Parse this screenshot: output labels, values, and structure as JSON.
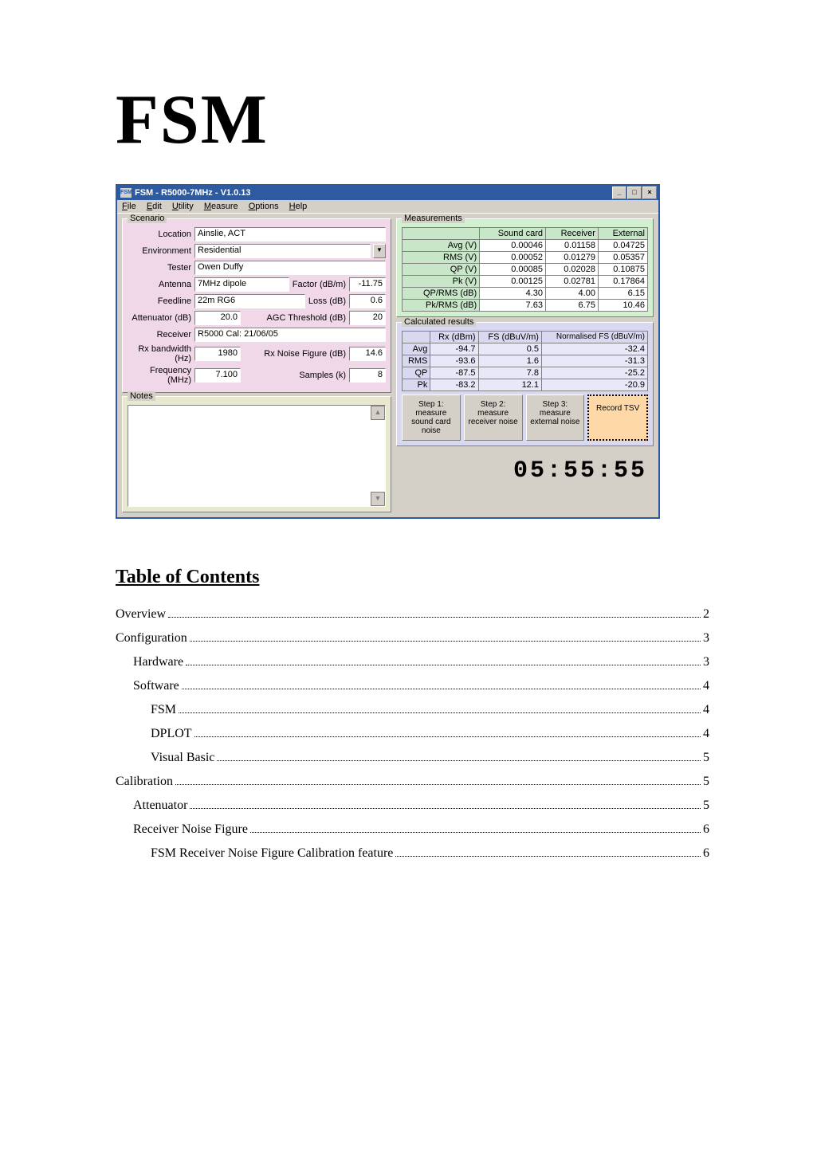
{
  "doc_title": "FSM",
  "app": {
    "titlebar_text": "FSM - R5000-7MHz - V1.0.13",
    "titlebar_icon_text": "FSM",
    "window_buttons": {
      "min": "_",
      "max": "□",
      "close": "×"
    },
    "menus": [
      "File",
      "Edit",
      "Utility",
      "Measure",
      "Options",
      "Help"
    ],
    "groups": {
      "scenario_title": "Scenario",
      "notes_title": "Notes",
      "measurements_title": "Measurements",
      "calculated_title": "Calculated results"
    },
    "scenario": {
      "location_label": "Location",
      "location_value": "Ainslie, ACT",
      "environment_label": "Environment",
      "environment_value": "Residential",
      "tester_label": "Tester",
      "tester_value": "Owen Duffy",
      "antenna_label": "Antenna",
      "antenna_value": "7MHz dipole",
      "factor_label": "Factor (dB/m)",
      "factor_value": "-11.75",
      "feedline_label": "Feedline",
      "feedline_value": "22m RG6",
      "loss_label": "Loss (dB)",
      "loss_value": "0.6",
      "attenuator_label": "Attenuator (dB)",
      "attenuator_value": "20.0",
      "agc_label": "AGC Threshold (dB)",
      "agc_value": "20",
      "receiver_label": "Receiver",
      "receiver_value": "R5000 Cal: 21/06/05",
      "rxbw_label": "Rx bandwidth (Hz)",
      "rxbw_value": "1980",
      "rxnf_label": "Rx Noise Figure (dB)",
      "rxnf_value": "14.6",
      "freq_label": "Frequency (MHz)",
      "freq_value": "7.100",
      "samples_label": "Samples (k)",
      "samples_value": "8"
    },
    "measurements": {
      "headers": [
        "",
        "Sound card",
        "Receiver",
        "External"
      ],
      "rows": [
        {
          "label": "Avg (V)",
          "vals": [
            "0.00046",
            "0.01158",
            "0.04725"
          ]
        },
        {
          "label": "RMS (V)",
          "vals": [
            "0.00052",
            "0.01279",
            "0.05357"
          ]
        },
        {
          "label": "QP (V)",
          "vals": [
            "0.00085",
            "0.02028",
            "0.10875"
          ]
        },
        {
          "label": "Pk (V)",
          "vals": [
            "0.00125",
            "0.02781",
            "0.17864"
          ]
        },
        {
          "label": "QP/RMS (dB)",
          "vals": [
            "4.30",
            "4.00",
            "6.15"
          ]
        },
        {
          "label": "Pk/RMS (dB)",
          "vals": [
            "7.63",
            "6.75",
            "10.46"
          ]
        }
      ]
    },
    "calculated": {
      "headers": [
        "",
        "Rx (dBm)",
        "FS (dBuV/m)",
        "Normalised FS (dBuV/m)"
      ],
      "rows": [
        {
          "label": "Avg",
          "vals": [
            "-94.7",
            "0.5",
            "-32.4"
          ]
        },
        {
          "label": "RMS",
          "vals": [
            "-93.6",
            "1.6",
            "-31.3"
          ]
        },
        {
          "label": "QP",
          "vals": [
            "-87.5",
            "7.8",
            "-25.2"
          ]
        },
        {
          "label": "Pk",
          "vals": [
            "-83.2",
            "12.1",
            "-20.9"
          ]
        }
      ]
    },
    "steps": {
      "s1": "Step 1: measure sound card noise",
      "s2": "Step 2: measure receiver noise",
      "s3": "Step 3: measure external noise",
      "record": "Record TSV"
    },
    "clock": "05:55:55",
    "colors": {
      "titlebar_bg": "#2d5aa0",
      "body_bg": "#d4d0c8",
      "scenario_bg": "#f0d8e8",
      "notes_bg": "#e8e8d0",
      "meas_bg": "#d0f0d0",
      "calc_bg": "#d8d8f0",
      "record_bg": "#ffd8a8"
    }
  },
  "toc_heading": "Table of Contents",
  "toc": [
    {
      "level": 1,
      "text": "Overview",
      "page": "2"
    },
    {
      "level": 1,
      "text": "Configuration",
      "page": "3"
    },
    {
      "level": 2,
      "text": "Hardware",
      "page": "3"
    },
    {
      "level": 2,
      "text": "Software",
      "page": "4"
    },
    {
      "level": 3,
      "text": "FSM",
      "page": "4"
    },
    {
      "level": 3,
      "text": "DPLOT",
      "page": "4"
    },
    {
      "level": 3,
      "text": "Visual Basic",
      "page": "5"
    },
    {
      "level": 1,
      "text": "Calibration",
      "page": "5"
    },
    {
      "level": 2,
      "text": "Attenuator",
      "page": "5"
    },
    {
      "level": 2,
      "text": "Receiver Noise Figure",
      "page": "6"
    },
    {
      "level": 3,
      "text": "FSM Receiver Noise Figure Calibration feature",
      "page": "6"
    }
  ]
}
